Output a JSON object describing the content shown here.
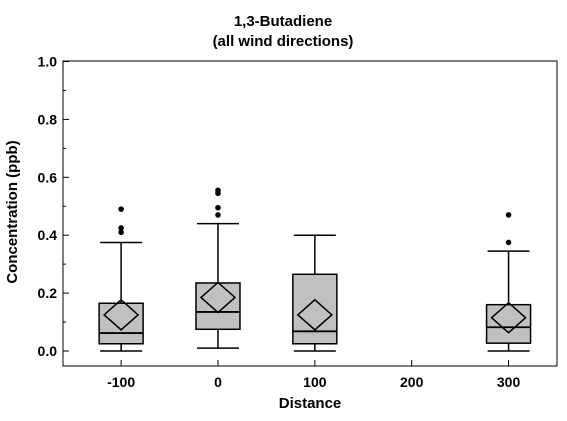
{
  "chart_data": {
    "type": "box",
    "title": "1,3-Butadiene",
    "subtitle": "(all wind directions)",
    "xlabel": "Distance",
    "ylabel": "Concentration (ppb)",
    "categories": [
      "-100",
      "0",
      "100",
      "200",
      "300"
    ],
    "x": [
      -100,
      0,
      100,
      200,
      300
    ],
    "xlim": [
      -160,
      350
    ],
    "ylim": [
      0,
      1.0
    ],
    "yticks": [
      0.0,
      0.2,
      0.4,
      0.6,
      0.8,
      1.0
    ],
    "ytick_labels": [
      "0.0",
      "0.2",
      "0.4",
      "0.6",
      "0.8",
      "1.0"
    ],
    "box_color": "#c0c0c0",
    "series": [
      {
        "x": -100,
        "min": 0.0,
        "q1": 0.025,
        "median": 0.062,
        "q3": 0.165,
        "max": 0.375,
        "mean": 0.125,
        "outliers": [
          0.41,
          0.425,
          0.49
        ]
      },
      {
        "x": 0,
        "min": 0.01,
        "q1": 0.075,
        "median": 0.135,
        "q3": 0.235,
        "max": 0.44,
        "mean": 0.185,
        "outliers": [
          0.47,
          0.495,
          0.545,
          0.555
        ]
      },
      {
        "x": 100,
        "min": 0.0,
        "q1": 0.025,
        "median": 0.068,
        "q3": 0.265,
        "max": 0.4,
        "mean": 0.125,
        "outliers": []
      },
      {
        "x": 300,
        "min": 0.0,
        "q1": 0.027,
        "median": 0.082,
        "q3": 0.16,
        "max": 0.345,
        "mean": 0.115,
        "outliers": [
          0.375,
          0.47
        ]
      }
    ]
  }
}
